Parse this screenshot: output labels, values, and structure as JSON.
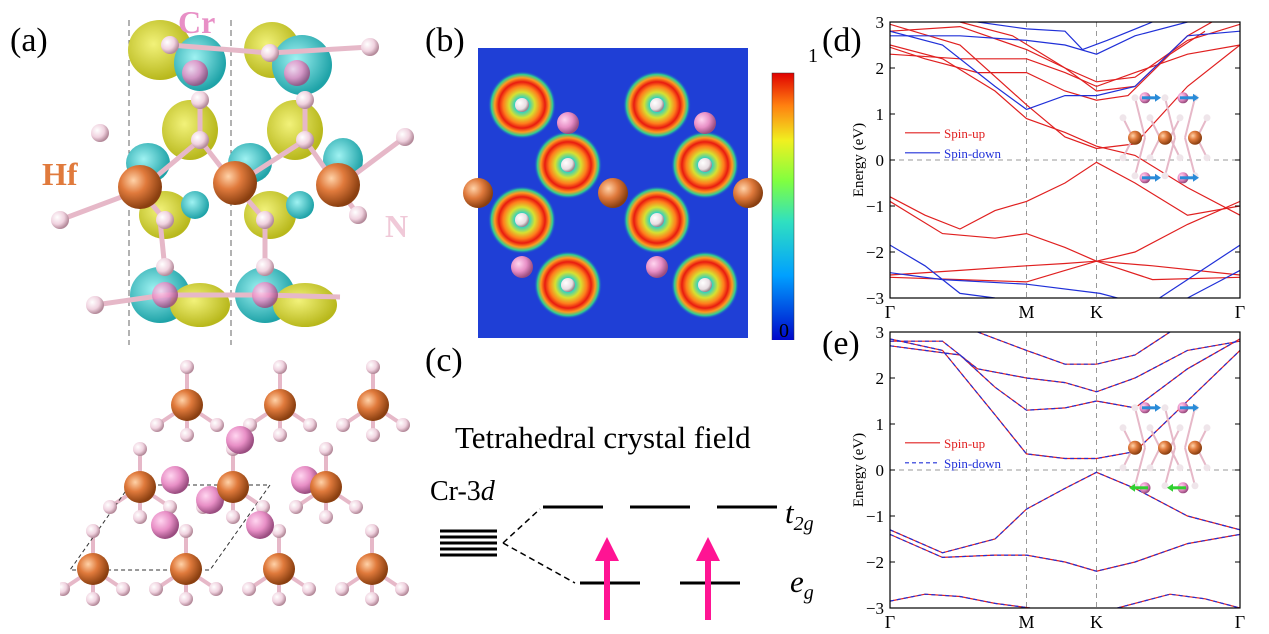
{
  "panel_labels": {
    "a": "(a)",
    "b": "(b)",
    "c": "(c)",
    "d": "(d)",
    "e": "(e)"
  },
  "panel_a": {
    "atom_labels": {
      "cr": "Cr",
      "hf": "Hf",
      "n": "N"
    },
    "colors": {
      "hf": "#e07a3c",
      "n": "#f0c9d8",
      "cr": "#e88fc6",
      "iso_yellow": "#d9d93a",
      "iso_cyan": "#3cc9c9"
    }
  },
  "panel_b": {
    "colorbar": {
      "max_label": "1",
      "min_label": "0"
    },
    "colors": {
      "background": "#1f3fd6"
    }
  },
  "panel_c": {
    "title": "Tetrahedral crystal field",
    "level_label": "Cr-3d",
    "upper_label": "t2g",
    "lower_label": "eg",
    "arrow_color": "#ff1493"
  },
  "chart_data": [
    {
      "type": "line",
      "panel": "d",
      "ylabel": "Energy (eV)",
      "ylim": [
        -3,
        3
      ],
      "yticks": [
        "3",
        "2",
        "1",
        "0",
        "−1",
        "−2",
        "−3"
      ],
      "xticks": [
        "Γ",
        "M",
        "K",
        "Γ"
      ],
      "legend": {
        "placement": "center-left",
        "entries": [
          "Spin-up",
          "Spin-down"
        ]
      },
      "series": [
        {
          "name": "Spin-up",
          "color": "#e02020",
          "style": "solid"
        },
        {
          "name": "Spin-down",
          "color": "#2030d8",
          "style": "solid"
        }
      ]
    },
    {
      "type": "line",
      "panel": "e",
      "ylabel": "Energy (eV)",
      "ylim": [
        -3,
        3
      ],
      "yticks": [
        "3",
        "2",
        "1",
        "0",
        "−1",
        "−2",
        "−3"
      ],
      "xticks": [
        "Γ",
        "M",
        "K",
        "Γ"
      ],
      "legend": {
        "placement": "center-left",
        "entries": [
          "Spin-up",
          "Spin-down"
        ]
      },
      "series": [
        {
          "name": "Spin-up",
          "color": "#e02020",
          "style": "solid"
        },
        {
          "name": "Spin-down",
          "color": "#2030d8",
          "style": "dashed"
        }
      ]
    }
  ]
}
